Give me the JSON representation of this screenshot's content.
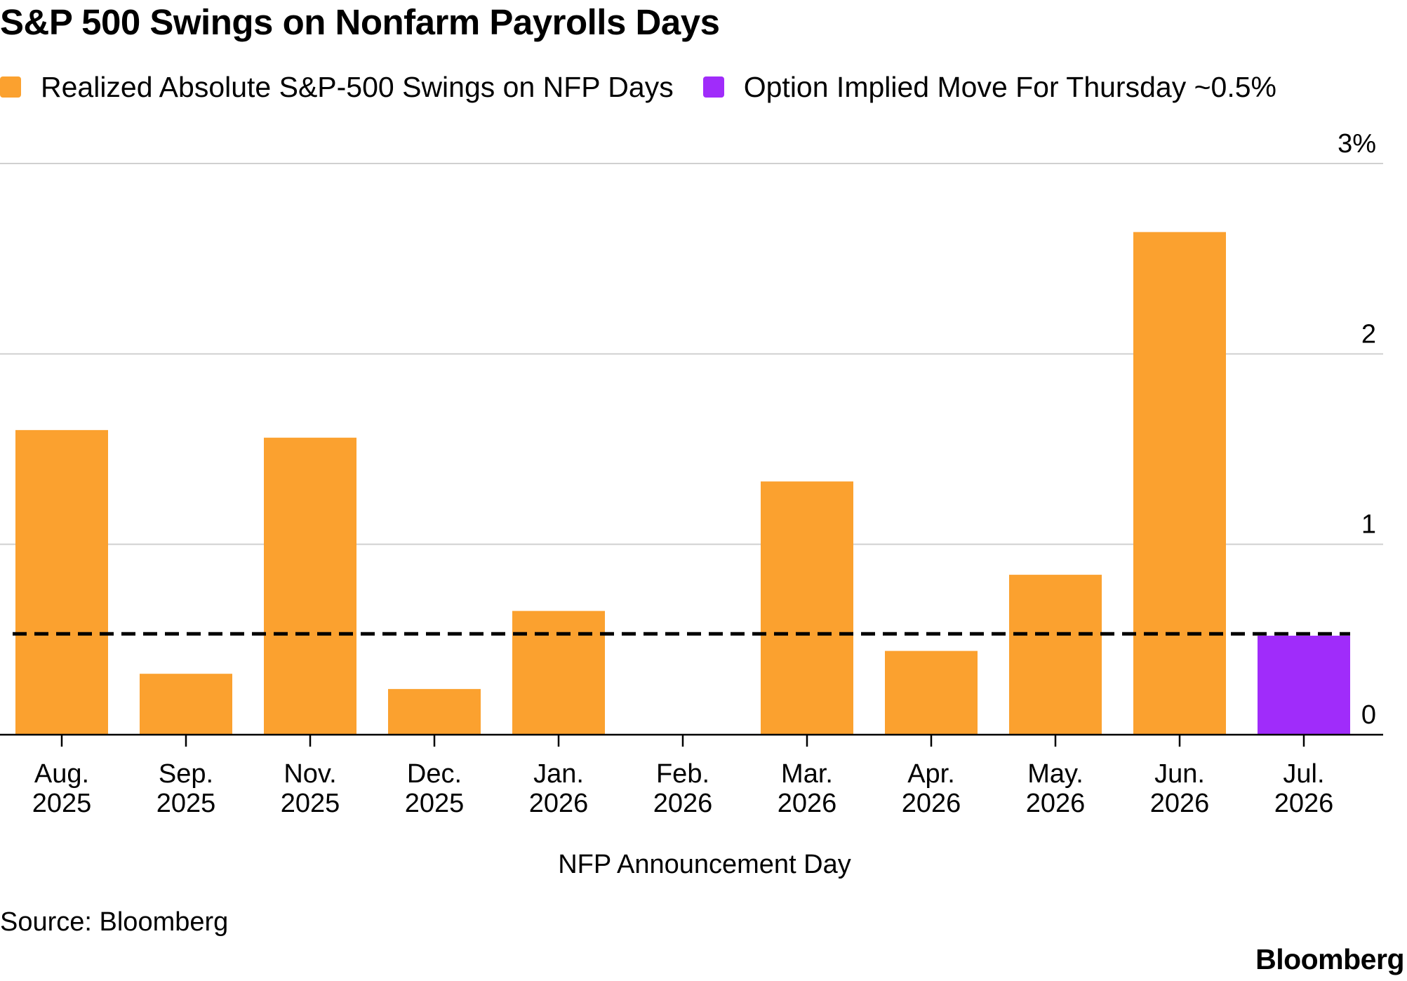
{
  "chart_data": {
    "type": "bar",
    "title": "S&P 500 Swings on Nonfarm Payrolls Days",
    "legend": [
      {
        "label": "Realized Absolute S&P-500 Swings on NFP Days",
        "color": "#fba12f"
      },
      {
        "label": "Option Implied Move For Thursday ~0.5%",
        "color": "#a02cfa"
      }
    ],
    "legend_placement": "top-left",
    "categories": [
      [
        "Aug.",
        "2025"
      ],
      [
        "Sep.",
        "2025"
      ],
      [
        "Nov.",
        "2025"
      ],
      [
        "Dec.",
        "2025"
      ],
      [
        "Jan.",
        "2026"
      ],
      [
        "Feb.",
        "2026"
      ],
      [
        "Mar.",
        "2026"
      ],
      [
        "Apr.",
        "2026"
      ],
      [
        "May.",
        "2026"
      ],
      [
        "Jun.",
        "2026"
      ],
      [
        "Jul.",
        "2026"
      ]
    ],
    "series": [
      {
        "name": "Realized Absolute S&P-500 Swings on NFP Days",
        "color": "#fba12f",
        "values": [
          1.6,
          0.32,
          1.56,
          0.24,
          0.65,
          0.0,
          1.33,
          0.44,
          0.84,
          2.64,
          null
        ]
      },
      {
        "name": "Option Implied Move For Thursday ~0.5%",
        "color": "#a02cfa",
        "values": [
          null,
          null,
          null,
          null,
          null,
          null,
          null,
          null,
          null,
          null,
          0.52
        ]
      }
    ],
    "reference_line": {
      "value": 0.53,
      "style": "dashed",
      "color": "#000000"
    },
    "xlabel": "NFP Announcement Day",
    "ylabel": "",
    "ylim": [
      0,
      3
    ],
    "y_ticks": [
      0,
      1,
      2,
      3
    ],
    "y_tick_labels": [
      "0",
      "1",
      "2",
      "3%"
    ],
    "y_axis_side": "right",
    "grid": true,
    "gridline_color": "#d0d0d0"
  },
  "footer": {
    "source": "Source: Bloomberg",
    "brand": "Bloomberg"
  }
}
